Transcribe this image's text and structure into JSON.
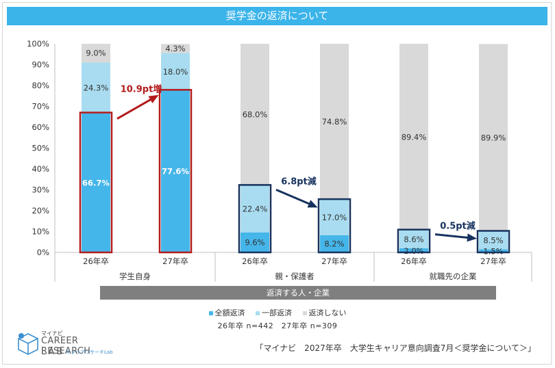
{
  "title": "奨学金の返済について",
  "colors": {
    "full": "#45b6ea",
    "partial": "#a9dcf0",
    "none": "#d9d9d9",
    "increase": "#b31b1b",
    "decrease": "#17325e",
    "groupband": "#7f7f7f"
  },
  "chart_data": {
    "type": "bar",
    "stacked": true,
    "ylim": [
      0,
      100
    ],
    "yticks": [
      "0%",
      "10%",
      "20%",
      "30%",
      "40%",
      "50%",
      "60%",
      "70%",
      "80%",
      "90%",
      "100%"
    ],
    "groups": [
      "学生自身",
      "親・保護者",
      "就職先の企業"
    ],
    "group_band": "返済する人・企業",
    "categories": [
      "26年卒",
      "27年卒",
      "26年卒",
      "27年卒",
      "26年卒",
      "27年卒"
    ],
    "series": [
      {
        "name": "全額返済",
        "values": [
          66.7,
          77.6,
          9.6,
          8.2,
          2.0,
          1.5
        ],
        "labels": [
          "66.7%",
          "77.6%",
          "9.6%",
          "8.2%",
          "2.0%",
          "1.5%"
        ]
      },
      {
        "name": "一部返済",
        "values": [
          24.3,
          18.0,
          22.4,
          17.0,
          8.6,
          8.5
        ],
        "labels": [
          "24.3%",
          "18.0%",
          "22.4%",
          "17.0%",
          "8.6%",
          "8.5%"
        ]
      },
      {
        "name": "返済しない",
        "values": [
          9.0,
          4.3,
          68.0,
          74.8,
          89.4,
          89.9
        ],
        "labels": [
          "9.0%",
          "4.3%",
          "68.0%",
          "74.8%",
          "89.4%",
          "89.9%"
        ]
      }
    ],
    "annotations": [
      {
        "text": "10.9pt増",
        "from_bar": 0,
        "to_bar": 1,
        "highlight": "full",
        "direction": "increase"
      },
      {
        "text": "6.8pt減",
        "from_bar": 2,
        "to_bar": 3,
        "highlight": "full+partial",
        "direction": "decrease"
      },
      {
        "text": "0.5pt減",
        "from_bar": 4,
        "to_bar": 5,
        "highlight": "full+partial",
        "direction": "decrease"
      }
    ],
    "legend_position": "bottom"
  },
  "note": "26年卒 n=442　27年卒 n=309",
  "logo": {
    "brand_small": "マイナビ",
    "brand": "CAREER RESEARCH",
    "lab": "LAB",
    "sub": "キャリアリサーチLab"
  },
  "source": "「マイナビ　2027年卒　大学生キャリア意向調査7月＜奨学金について＞」"
}
